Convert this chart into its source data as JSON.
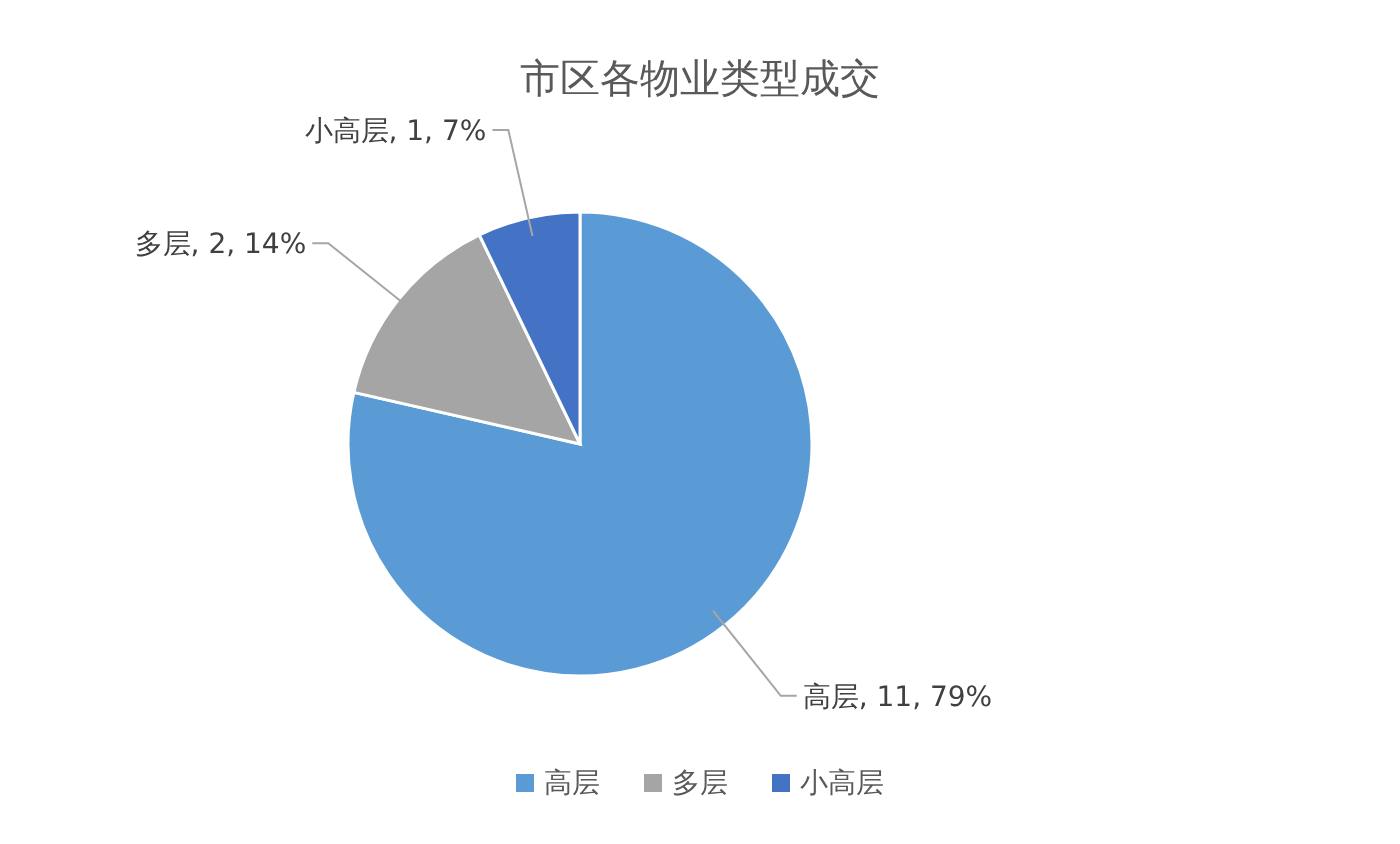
{
  "chart_data": {
    "type": "pie",
    "title": "市区各物业类型成交",
    "categories": [
      "高层",
      "多层",
      "小高层"
    ],
    "values": [
      11,
      2,
      1
    ],
    "colors": [
      "#5b9bd5",
      "#a5a5a5",
      "#4472c4"
    ],
    "value_labels": [
      "高层, 11, 79%",
      "多层, 2, 14%",
      "小高层, 1, 7%"
    ],
    "legend": "bottom"
  }
}
